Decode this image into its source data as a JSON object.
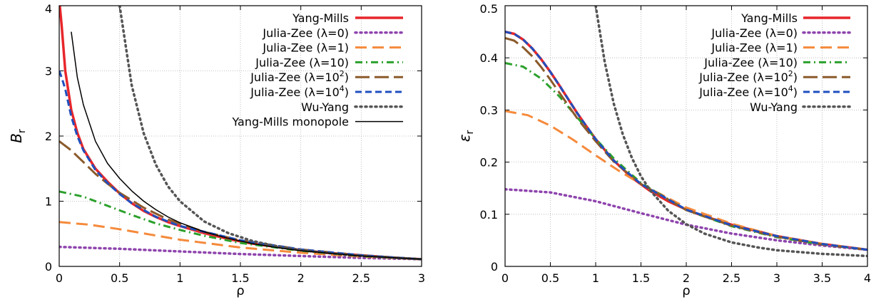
{
  "chart_data": [
    {
      "type": "line",
      "xlabel": "ρ",
      "ylabel": "B",
      "ylabel_sub": "r",
      "xlim": [
        0,
        3
      ],
      "ylim": [
        0,
        4
      ],
      "xticks": [
        {
          "v": 0,
          "label": "0"
        },
        {
          "v": 0.5,
          "label": "0.5"
        },
        {
          "v": 1,
          "label": "1"
        },
        {
          "v": 1.5,
          "label": "1.5"
        },
        {
          "v": 2,
          "label": "2"
        },
        {
          "v": 2.5,
          "label": "2.5"
        },
        {
          "v": 3,
          "label": "3"
        }
      ],
      "yticks": [
        {
          "v": 0,
          "label": "0"
        },
        {
          "v": 1,
          "label": "1"
        },
        {
          "v": 2,
          "label": "2"
        },
        {
          "v": 3,
          "label": "3"
        },
        {
          "v": 4,
          "label": "4"
        }
      ],
      "grid": true,
      "legend_position": "top-right",
      "series": [
        {
          "name": "Yang-Mills",
          "color": "#e8262b",
          "dash": "solid",
          "width": 3.5,
          "x": [
            0.005,
            0.02,
            0.05,
            0.1,
            0.15,
            0.2,
            0.3,
            0.4,
            0.5,
            0.6,
            0.7,
            0.8,
            0.9,
            1.0,
            1.2,
            1.4,
            1.6,
            1.8,
            2.0,
            2.2,
            2.5,
            2.8,
            3.0
          ],
          "y": [
            4.0,
            3.7,
            3.0,
            2.4,
            2.05,
            1.8,
            1.5,
            1.3,
            1.12,
            0.97,
            0.85,
            0.76,
            0.68,
            0.62,
            0.51,
            0.42,
            0.35,
            0.3,
            0.25,
            0.21,
            0.17,
            0.13,
            0.11
          ]
        },
        {
          "name": "Julia-Zee (λ=0)",
          "name_main": "Julia-Zee (λ=0)",
          "name_sup": "",
          "name_tail": "",
          "color": "#8e44ad",
          "dash": "dot",
          "width": 3.5,
          "x": [
            0,
            0.5,
            1.0,
            1.5,
            2.0,
            2.5,
            3.0
          ],
          "y": [
            0.3,
            0.27,
            0.23,
            0.19,
            0.16,
            0.13,
            0.11
          ]
        },
        {
          "name": "Julia-Zee (λ=1)",
          "name_main": "Julia-Zee (λ=1)",
          "name_sup": "",
          "name_tail": "",
          "color": "#f58a3b",
          "dash": "longdash",
          "width": 3,
          "x": [
            0,
            0.25,
            0.5,
            0.75,
            1.0,
            1.5,
            2.0,
            2.5,
            3.0
          ],
          "y": [
            0.68,
            0.64,
            0.57,
            0.49,
            0.41,
            0.29,
            0.21,
            0.15,
            0.11
          ]
        },
        {
          "name": "Julia-Zee (λ=10)",
          "name_main": "Julia-Zee (λ=10)",
          "name_sup": "",
          "name_tail": "",
          "color": "#2ca02c",
          "dash": "dashdot",
          "width": 3,
          "x": [
            0,
            0.2,
            0.4,
            0.6,
            0.8,
            1.0,
            1.2,
            1.5,
            2.0,
            2.5,
            3.0
          ],
          "y": [
            1.15,
            1.07,
            0.93,
            0.79,
            0.66,
            0.56,
            0.47,
            0.36,
            0.24,
            0.16,
            0.11
          ]
        },
        {
          "name": "Julia-Zee (λ=10^2)",
          "name_main": "Julia-Zee (λ=10",
          "name_sup": "2",
          "name_tail": ")",
          "color": "#8b5a2b",
          "dash": "longdash2",
          "width": 3,
          "x": [
            0,
            0.1,
            0.2,
            0.3,
            0.4,
            0.5,
            0.7,
            0.9,
            1.2,
            1.5,
            2.0,
            2.5,
            3.0
          ],
          "y": [
            1.92,
            1.78,
            1.6,
            1.42,
            1.27,
            1.13,
            0.9,
            0.72,
            0.53,
            0.4,
            0.26,
            0.17,
            0.11
          ]
        },
        {
          "name": "Julia-Zee (λ=10^4)",
          "name_main": "Julia-Zee (λ=10",
          "name_sup": "4",
          "name_tail": ")",
          "color": "#1f4fbf",
          "dash": "dash",
          "width": 3,
          "x": [
            0,
            0.02,
            0.05,
            0.1,
            0.15,
            0.2,
            0.3,
            0.4,
            0.5,
            0.6,
            0.8,
            1.0,
            1.5,
            2.0,
            2.5,
            3.0
          ],
          "y": [
            3.0,
            2.9,
            2.72,
            2.3,
            2.0,
            1.78,
            1.48,
            1.28,
            1.11,
            0.97,
            0.76,
            0.62,
            0.4,
            0.26,
            0.17,
            0.11
          ]
        },
        {
          "name": "Wu-Yang",
          "name_main": "Wu-Yang",
          "name_sup": "",
          "name_tail": "",
          "color": "#555555",
          "dash": "dot",
          "width": 3.5,
          "x": [
            0.5,
            0.6,
            0.7,
            0.8,
            0.9,
            1.0,
            1.2,
            1.4,
            1.6,
            1.8,
            2.0,
            2.2,
            2.4,
            2.6,
            2.8,
            3.0
          ],
          "y": [
            4.0,
            2.78,
            2.04,
            1.56,
            1.23,
            1.0,
            0.69,
            0.51,
            0.39,
            0.31,
            0.25,
            0.21,
            0.17,
            0.15,
            0.13,
            0.11
          ]
        },
        {
          "name": "Yang-Mills monopole",
          "name_main": "Yang-Mills monopole",
          "name_sup": "",
          "name_tail": "",
          "color": "#000000",
          "dash": "solid",
          "width": 1.5,
          "x": [
            0.1,
            0.15,
            0.2,
            0.3,
            0.4,
            0.5,
            0.6,
            0.7,
            0.8,
            0.9,
            1.0,
            1.2,
            1.4,
            1.6,
            1.8,
            2.0,
            2.5,
            3.0
          ],
          "y": [
            3.6,
            2.9,
            2.48,
            1.92,
            1.58,
            1.35,
            1.16,
            1.0,
            0.87,
            0.76,
            0.67,
            0.53,
            0.43,
            0.35,
            0.29,
            0.24,
            0.16,
            0.11
          ]
        }
      ]
    },
    {
      "type": "line",
      "xlabel": "ρ",
      "ylabel": "ε",
      "ylabel_sub": "r",
      "xlim": [
        0,
        4
      ],
      "ylim": [
        0,
        0.5
      ],
      "xticks": [
        {
          "v": 0,
          "label": "0"
        },
        {
          "v": 0.5,
          "label": "0.5"
        },
        {
          "v": 1,
          "label": "1"
        },
        {
          "v": 1.5,
          "label": "1.5"
        },
        {
          "v": 2,
          "label": "2"
        },
        {
          "v": 2.5,
          "label": "2.5"
        },
        {
          "v": 3,
          "label": "3"
        },
        {
          "v": 3.5,
          "label": "3.5"
        },
        {
          "v": 4,
          "label": "4"
        }
      ],
      "yticks": [
        {
          "v": 0,
          "label": "0"
        },
        {
          "v": 0.1,
          "label": "0.1"
        },
        {
          "v": 0.2,
          "label": "0.2"
        },
        {
          "v": 0.3,
          "label": "0.3"
        },
        {
          "v": 0.4,
          "label": "0.4"
        },
        {
          "v": 0.5,
          "label": "0.5"
        }
      ],
      "grid": true,
      "legend_position": "top-right",
      "series": [
        {
          "name": "Yang-Mills",
          "name_main": "Yang-Mills",
          "name_sup": "",
          "name_tail": "",
          "color": "#e8262b",
          "dash": "solid",
          "width": 3.5,
          "x": [
            0,
            0.1,
            0.2,
            0.3,
            0.4,
            0.5,
            0.6,
            0.7,
            0.8,
            0.9,
            1.0,
            1.2,
            1.4,
            1.6,
            1.8,
            2.0,
            2.2,
            2.5,
            3.0,
            3.5,
            4.0
          ],
          "y": [
            0.45,
            0.446,
            0.435,
            0.418,
            0.397,
            0.373,
            0.347,
            0.32,
            0.293,
            0.268,
            0.244,
            0.203,
            0.17,
            0.145,
            0.125,
            0.109,
            0.096,
            0.08,
            0.058,
            0.043,
            0.032
          ]
        },
        {
          "name": "Julia-Zee (λ=0)",
          "name_main": "Julia-Zee (λ=0)",
          "name_sup": "",
          "name_tail": "",
          "color": "#8e44ad",
          "dash": "dot",
          "width": 3.5,
          "x": [
            0,
            0.5,
            1.0,
            1.5,
            2.0,
            2.5,
            3.0,
            3.5,
            4.0
          ],
          "y": [
            0.148,
            0.142,
            0.125,
            0.102,
            0.08,
            0.063,
            0.05,
            0.04,
            0.032
          ]
        },
        {
          "name": "Julia-Zee (λ=1)",
          "name_main": "Julia-Zee (λ=1)",
          "name_sup": "",
          "name_tail": "",
          "color": "#f58a3b",
          "dash": "longdash",
          "width": 3,
          "x": [
            0,
            0.25,
            0.5,
            0.75,
            1.0,
            1.25,
            1.5,
            2.0,
            2.5,
            3.0,
            3.5,
            4.0
          ],
          "y": [
            0.298,
            0.29,
            0.27,
            0.243,
            0.213,
            0.184,
            0.158,
            0.113,
            0.082,
            0.058,
            0.043,
            0.032
          ]
        },
        {
          "name": "Julia-Zee (λ=10)",
          "name_main": "Julia-Zee (λ=10)",
          "name_sup": "",
          "name_tail": "",
          "color": "#2ca02c",
          "dash": "dashdot",
          "width": 3,
          "x": [
            0,
            0.2,
            0.4,
            0.6,
            0.8,
            1.0,
            1.2,
            1.5,
            2.0,
            2.5,
            3.0,
            3.5,
            4.0
          ],
          "y": [
            0.39,
            0.383,
            0.36,
            0.326,
            0.285,
            0.245,
            0.207,
            0.16,
            0.108,
            0.077,
            0.056,
            0.042,
            0.032
          ]
        },
        {
          "name": "Julia-Zee (λ=10^2)",
          "name_main": "Julia-Zee (λ=10",
          "name_sup": "2",
          "name_tail": ")",
          "color": "#8b5a2b",
          "dash": "longdash2",
          "width": 3,
          "x": [
            0,
            0.1,
            0.2,
            0.3,
            0.4,
            0.5,
            0.6,
            0.8,
            1.0,
            1.2,
            1.5,
            2.0,
            2.5,
            3.0,
            3.5,
            4.0
          ],
          "y": [
            0.438,
            0.433,
            0.42,
            0.403,
            0.382,
            0.358,
            0.333,
            0.283,
            0.24,
            0.201,
            0.158,
            0.108,
            0.078,
            0.057,
            0.042,
            0.032
          ]
        },
        {
          "name": "Julia-Zee (λ=10^4)",
          "name_main": "Julia-Zee (λ=10",
          "name_sup": "4",
          "name_tail": ")",
          "color": "#1f4fbf",
          "dash": "dash",
          "width": 3,
          "x": [
            0,
            0.1,
            0.2,
            0.3,
            0.4,
            0.5,
            0.6,
            0.8,
            1.0,
            1.2,
            1.5,
            2.0,
            2.5,
            3.0,
            3.5,
            4.0
          ],
          "y": [
            0.45,
            0.446,
            0.435,
            0.418,
            0.397,
            0.373,
            0.347,
            0.293,
            0.244,
            0.203,
            0.158,
            0.109,
            0.079,
            0.058,
            0.043,
            0.032
          ]
        },
        {
          "name": "Wu-Yang",
          "name_main": "Wu-Yang",
          "name_sup": "",
          "name_tail": "",
          "color": "#555555",
          "dash": "dot",
          "width": 3.5,
          "x": [
            1.0,
            1.1,
            1.2,
            1.3,
            1.4,
            1.5,
            1.6,
            1.8,
            2.0,
            2.2,
            2.5,
            2.8,
            3.0,
            3.5,
            4.0
          ],
          "y": [
            0.5,
            0.392,
            0.312,
            0.253,
            0.208,
            0.173,
            0.146,
            0.107,
            0.081,
            0.063,
            0.046,
            0.036,
            0.031,
            0.024,
            0.02
          ]
        }
      ]
    }
  ]
}
